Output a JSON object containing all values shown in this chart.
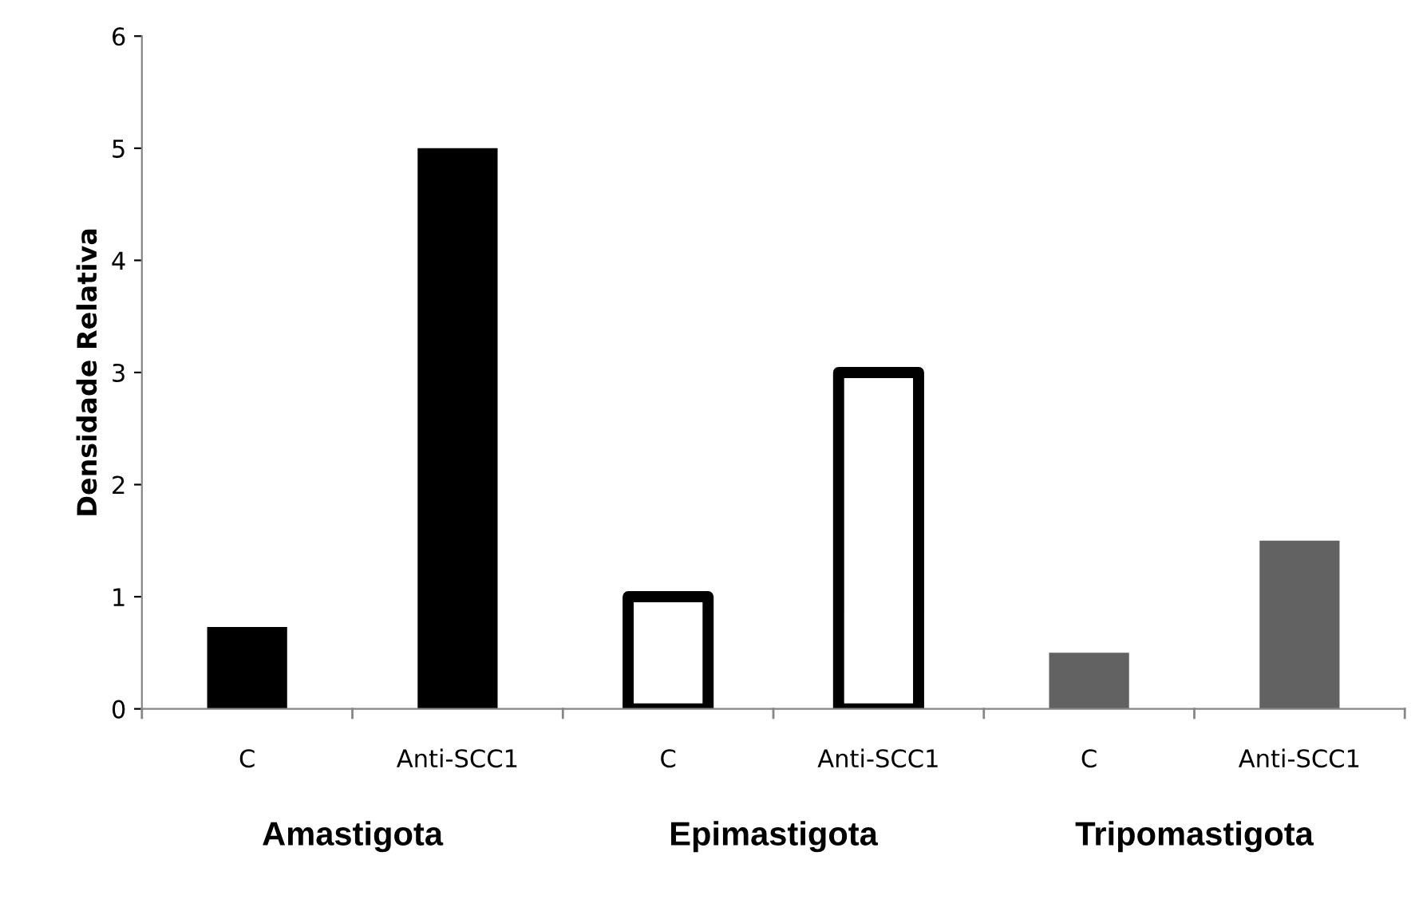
{
  "chart_data": {
    "type": "bar",
    "ylabel": "Densidade Relativa",
    "categories": [
      "C",
      "Anti-SCC1",
      "C",
      "Anti-SCC1",
      "C",
      "Anti-SCC1"
    ],
    "values": [
      0.73,
      5.0,
      1.0,
      3.0,
      0.5,
      1.5
    ],
    "colors": [
      "#000000",
      "#000000",
      "#ffffff",
      "#ffffff",
      "#626262",
      "#626262"
    ],
    "ylim": [
      0,
      6
    ],
    "yticks": [
      0,
      1,
      2,
      3,
      4,
      5,
      6
    ],
    "grid": false,
    "annotations": [
      "Amastigota",
      "Epimastigota",
      "Tripomastigota"
    ]
  }
}
